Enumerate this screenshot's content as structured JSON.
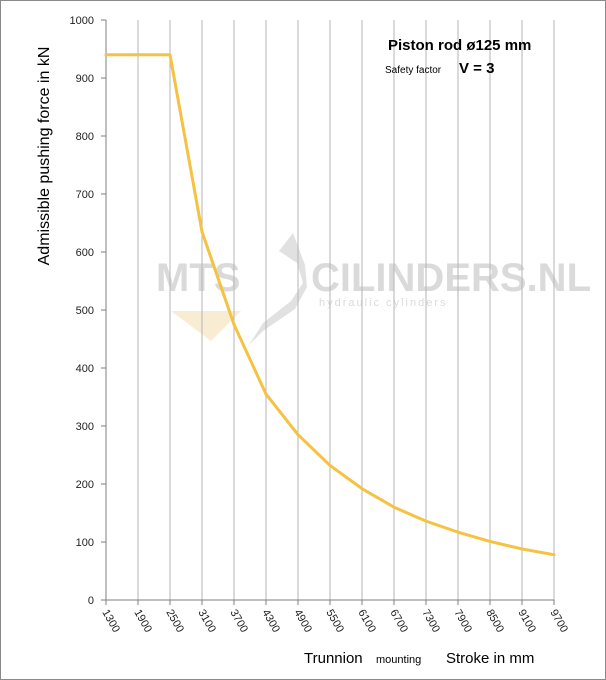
{
  "chart_data": {
    "type": "line",
    "xlabel_main": "Trunnion",
    "xlabel_sub": "mounting",
    "xlabel_right": "Stroke in mm",
    "ylabel": "Admissible pushing force in kN",
    "ylim": [
      0,
      1000
    ],
    "y_ticks": [
      "0",
      "100",
      "200",
      "300",
      "400",
      "500",
      "600",
      "700",
      "800",
      "900",
      "1000"
    ],
    "x_ticks": [
      "1300",
      "1900",
      "2500",
      "3100",
      "3700",
      "4300",
      "4900",
      "5500",
      "6100",
      "6700",
      "7300",
      "7900",
      "8500",
      "9100",
      "9700"
    ],
    "grid": "vertical",
    "series": [
      {
        "color": "#f5c242",
        "x": [
          1300,
          1900,
          2500,
          3100,
          3700,
          4300,
          4900,
          5500,
          6100,
          6700,
          7300,
          7900,
          8500,
          9100,
          9700
        ],
        "values": [
          940,
          940,
          940,
          635,
          475,
          355,
          285,
          232,
          192,
          160,
          136,
          117,
          101,
          88,
          78
        ]
      }
    ],
    "annotation": {
      "title": "Piston rod ø125 mm",
      "factor_label": "Safety factor",
      "factor_value": "V = 3"
    }
  },
  "watermark": {
    "brand_left": "MTS",
    "brand_right": "CILINDERS.NL",
    "tagline": "hydraulic cylinders"
  }
}
